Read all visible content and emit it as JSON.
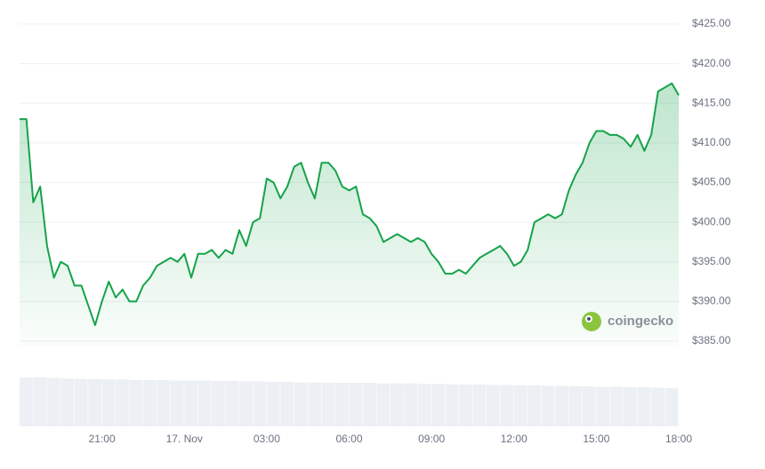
{
  "chart_data": [
    {
      "type": "line",
      "color": "#16a34a",
      "watermark": "coingecko",
      "xlim": [
        0,
        24
      ],
      "xticks": [
        {
          "value": 3,
          "label": "21:00"
        },
        {
          "value": 6,
          "label": "17. Nov"
        },
        {
          "value": 9,
          "label": "03:00"
        },
        {
          "value": 12,
          "label": "06:00"
        },
        {
          "value": 15,
          "label": "09:00"
        },
        {
          "value": 18,
          "label": "12:00"
        },
        {
          "value": 21,
          "label": "15:00"
        },
        {
          "value": 24,
          "label": "18:00"
        }
      ],
      "ylim": [
        385,
        425
      ],
      "yticks": [
        {
          "value": 385,
          "label": "$385.00"
        },
        {
          "value": 390,
          "label": "$390.00"
        },
        {
          "value": 395,
          "label": "$395.00"
        },
        {
          "value": 400,
          "label": "$400.00"
        },
        {
          "value": 405,
          "label": "$405.00"
        },
        {
          "value": 410,
          "label": "$410.00"
        },
        {
          "value": 415,
          "label": "$415.00"
        },
        {
          "value": 420,
          "label": "$420.00"
        },
        {
          "value": 425,
          "label": "$425.00"
        }
      ],
      "grid": true,
      "x": [
        0,
        0.25,
        0.5,
        0.75,
        1,
        1.25,
        1.5,
        1.75,
        2,
        2.25,
        2.5,
        2.75,
        3,
        3.25,
        3.5,
        3.75,
        4,
        4.25,
        4.5,
        4.75,
        5,
        5.25,
        5.5,
        5.75,
        6,
        6.25,
        6.5,
        6.75,
        7,
        7.25,
        7.5,
        7.75,
        8,
        8.25,
        8.5,
        8.75,
        9,
        9.25,
        9.5,
        9.75,
        10,
        10.25,
        10.5,
        10.75,
        11,
        11.25,
        11.5,
        11.75,
        12,
        12.25,
        12.5,
        12.75,
        13,
        13.25,
        13.5,
        13.75,
        14,
        14.25,
        14.5,
        14.75,
        15,
        15.25,
        15.5,
        15.75,
        16,
        16.25,
        16.5,
        16.75,
        17,
        17.25,
        17.5,
        17.75,
        18,
        18.25,
        18.5,
        18.75,
        19,
        19.25,
        19.5,
        19.75,
        20,
        20.25,
        20.5,
        20.75,
        21,
        21.25,
        21.5,
        21.75,
        22,
        22.25,
        22.5,
        22.75,
        23,
        23.25,
        23.5,
        23.75,
        24
      ],
      "values": [
        413,
        413,
        402.5,
        404.5,
        397,
        393,
        395,
        394.5,
        392,
        392,
        389.5,
        387,
        390,
        392.5,
        390.5,
        391.5,
        390,
        390,
        392,
        393,
        394.5,
        395,
        395.5,
        395,
        396,
        393,
        396,
        396,
        396.5,
        395.5,
        396.5,
        396,
        399,
        397,
        400,
        400.5,
        405.5,
        405,
        403,
        404.5,
        407,
        407.5,
        405,
        403,
        407.5,
        407.5,
        406.5,
        404.5,
        404,
        404.5,
        401,
        400.5,
        399.5,
        397.5,
        398,
        398.5,
        398,
        397.5,
        398,
        397.5,
        396,
        395,
        393.5,
        393.5,
        394,
        393.5,
        394.5,
        395.5,
        396,
        396.5,
        397,
        396,
        394.5,
        395,
        396.5,
        400,
        400.5,
        401,
        400.5,
        401,
        404,
        406,
        407.5,
        410,
        411.5,
        411.5,
        411,
        411,
        410.5,
        409.5,
        411,
        409,
        411,
        416.5,
        417,
        417.5,
        416
      ]
    },
    {
      "type": "bar",
      "color": "#eceff3",
      "ylim": [
        0,
        100
      ],
      "values": [
        100,
        100,
        99,
        98,
        97,
        97,
        96,
        96,
        95,
        95,
        95,
        94,
        94,
        94,
        93,
        93,
        92,
        92,
        91,
        91,
        90,
        90,
        90,
        89,
        89,
        89,
        88,
        88,
        88,
        87,
        87,
        86,
        86,
        86,
        85,
        85,
        84,
        84,
        83,
        83,
        82,
        82,
        81,
        81,
        80,
        80,
        79,
        78
      ]
    }
  ]
}
